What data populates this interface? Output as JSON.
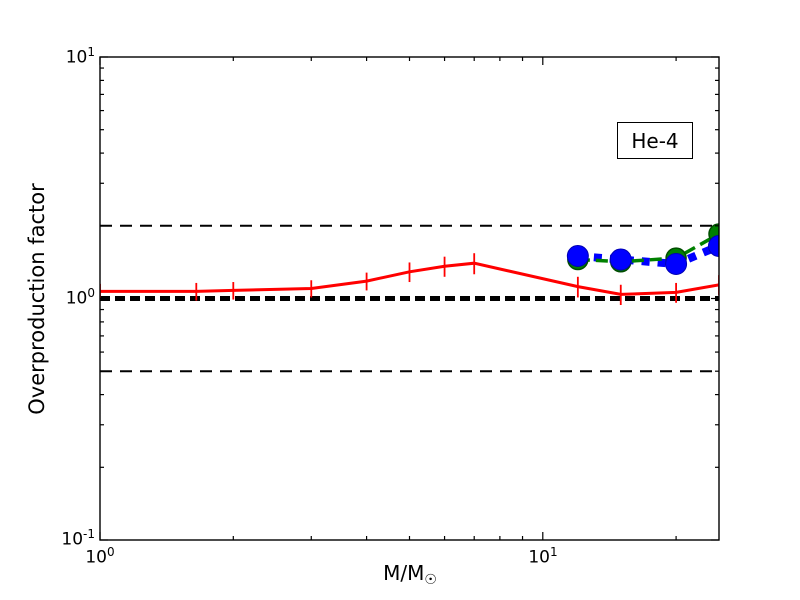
{
  "figure": {
    "legend": {
      "label": "He-4"
    },
    "x_axis": {
      "label_main": "M/M",
      "label_subscript": "☉",
      "tick_labels": [
        {
          "base": "10",
          "exp": "0"
        },
        {
          "base": "10",
          "exp": "1"
        }
      ]
    },
    "y_axis": {
      "label": "Overproduction factor",
      "tick_labels": [
        {
          "base": "10",
          "exp": "1"
        },
        {
          "base": "10",
          "exp": "0"
        },
        {
          "base": "10",
          "exp": "-1"
        }
      ]
    }
  },
  "chart_data": {
    "type": "line",
    "title": "",
    "xlabel": "M/M☉",
    "ylabel": "Overproduction factor",
    "xscale": "log",
    "yscale": "log",
    "xlim": [
      1,
      25
    ],
    "ylim": [
      0.1,
      10
    ],
    "grid": false,
    "annotation": "He-4",
    "annotation_position": "upper right",
    "reference_lines": [
      {
        "y": 1.0,
        "color": "#000000",
        "style": "dashed",
        "weight": "thick"
      },
      {
        "y": 2.0,
        "color": "#000000",
        "style": "dashed",
        "weight": "thin"
      },
      {
        "y": 0.5,
        "color": "#000000",
        "style": "dashed",
        "weight": "thin"
      }
    ],
    "series": [
      {
        "name": "red_solid_with_errorbars",
        "color": "#ff0000",
        "style": "solid",
        "marker": "none",
        "x": [
          1.0,
          1.65,
          2.0,
          3.0,
          4.0,
          5.0,
          6.0,
          7.0,
          12.0,
          15.0,
          20.0,
          25.0
        ],
        "y": [
          1.07,
          1.07,
          1.08,
          1.1,
          1.18,
          1.29,
          1.36,
          1.4,
          1.12,
          1.04,
          1.06,
          1.14
        ],
        "yerr": [
          0.08,
          0.09,
          0.09,
          0.09,
          0.1,
          0.12,
          0.13,
          0.14,
          0.11,
          0.1,
          0.1,
          0.11
        ]
      },
      {
        "name": "green_dashed_with_circles",
        "color": "#008000",
        "style": "dashed",
        "marker": "circle",
        "x": [
          12.0,
          15.0,
          20.0,
          25.0
        ],
        "y": [
          1.45,
          1.42,
          1.47,
          1.85
        ]
      },
      {
        "name": "blue_dashed_with_circles",
        "color": "#0000ff",
        "style": "dashed",
        "marker": "circle",
        "x": [
          12.0,
          15.0,
          20.0,
          25.0
        ],
        "y": [
          1.5,
          1.45,
          1.39,
          1.65
        ]
      }
    ]
  }
}
